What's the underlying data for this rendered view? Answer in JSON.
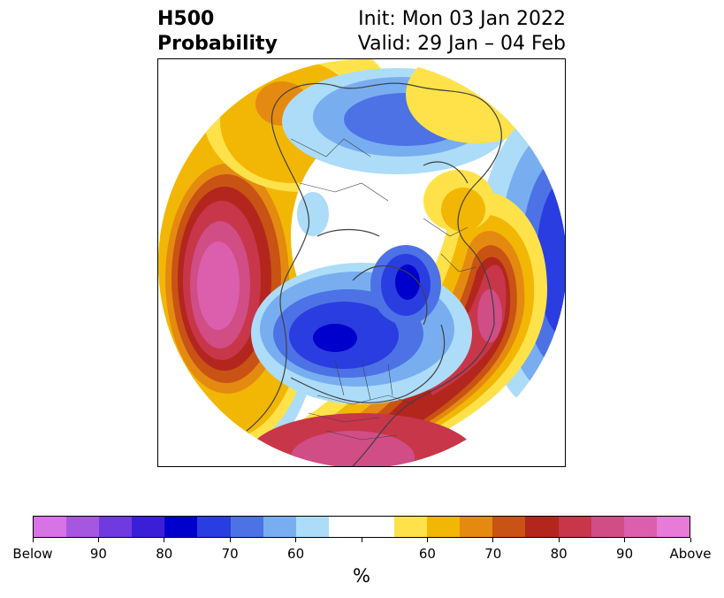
{
  "header": {
    "title_line1": "H500",
    "title_line2": "Probability",
    "init_text": "Init: Mon 03 Jan 2022",
    "valid_text": "Valid: 29 Jan – 04 Feb"
  },
  "colorbar": {
    "unit": "%",
    "colors": [
      "#d873e6",
      "#a657e0",
      "#6f3be0",
      "#3b1fd8",
      "#0000cc",
      "#2a3de0",
      "#4d72e6",
      "#78aef0",
      "#acdcf8",
      "#ffffff",
      "#ffffff",
      "#ffe24a",
      "#f2b705",
      "#e48a10",
      "#c85314",
      "#b3261e",
      "#c8364a",
      "#d04d86",
      "#dc5fae",
      "#e87ad8"
    ],
    "labels": [
      "Below",
      "90",
      "80",
      "70",
      "60",
      "60",
      "70",
      "80",
      "90",
      "Above"
    ],
    "colors_note_semantic": "below-normal blues/purples, above-normal yellows/reds/pinks"
  },
  "map": {
    "projection": "polar-stereographic-north",
    "features": [
      "coastlines",
      "country-borders",
      "state-borders"
    ]
  }
}
